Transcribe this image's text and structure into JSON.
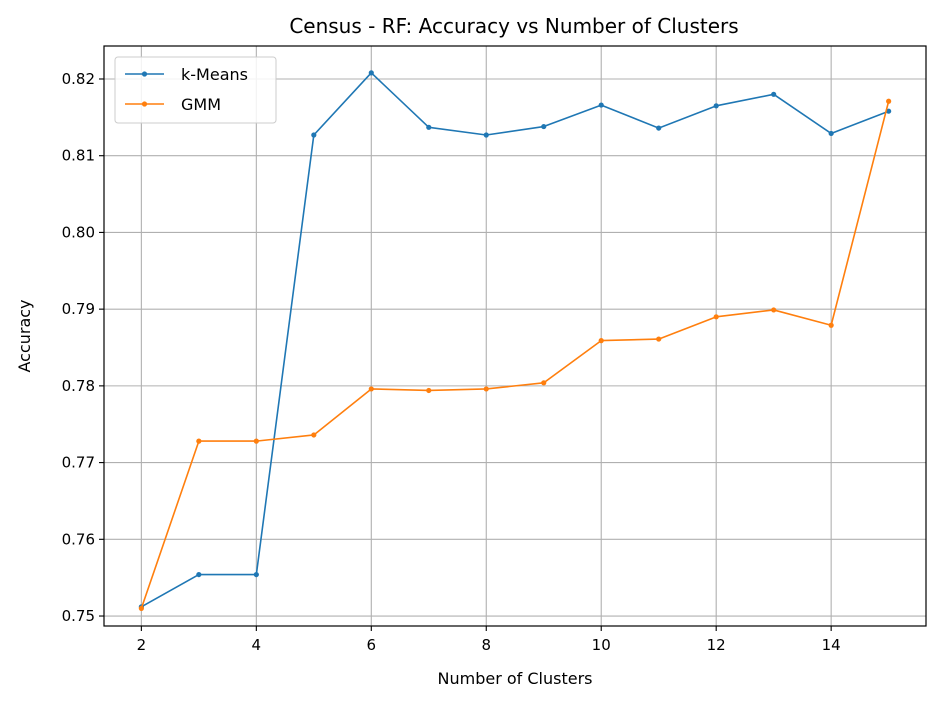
{
  "chart_data": {
    "type": "line",
    "title": "Census - RF: Accuracy vs Number of Clusters",
    "xlabel": "Number of Clusters",
    "ylabel": "Accuracy",
    "x": [
      2,
      3,
      4,
      5,
      6,
      7,
      8,
      9,
      10,
      11,
      12,
      13,
      14,
      15
    ],
    "xticks": [
      2,
      4,
      6,
      8,
      10,
      12,
      14
    ],
    "xtick_labels": [
      "2",
      "4",
      "6",
      "8",
      "10",
      "12",
      "14"
    ],
    "yticks": [
      0.75,
      0.76,
      0.77,
      0.78,
      0.79,
      0.8,
      0.81,
      0.82
    ],
    "ytick_labels": [
      "0.75",
      "0.76",
      "0.77",
      "0.78",
      "0.79",
      "0.80",
      "0.81",
      "0.82"
    ],
    "xlim": [
      1.35,
      15.65
    ],
    "ylim": [
      0.7487,
      0.8243
    ],
    "grid": true,
    "legend_position": "upper-left",
    "series": [
      {
        "name": "k-Means",
        "color": "#1f77b4",
        "marker": "circle",
        "values": [
          0.7512,
          0.7554,
          0.7554,
          0.8127,
          0.8208,
          0.8137,
          0.8127,
          0.8138,
          0.8166,
          0.8136,
          0.8165,
          0.818,
          0.8129,
          0.8158
        ]
      },
      {
        "name": "GMM",
        "color": "#ff7f0e",
        "marker": "circle",
        "values": [
          0.751,
          0.7728,
          0.7728,
          0.7736,
          0.7796,
          0.7794,
          0.7796,
          0.7804,
          0.7859,
          0.7861,
          0.789,
          0.7899,
          0.7879,
          0.8171
        ]
      }
    ]
  }
}
